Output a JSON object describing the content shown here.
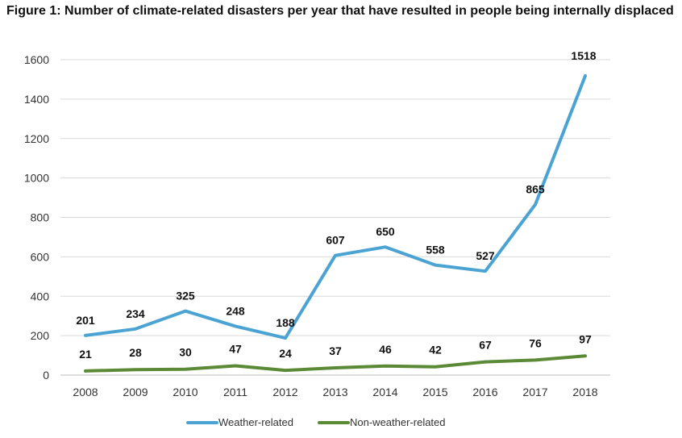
{
  "title": "Figure 1: Number of climate-related disasters per year that have resulted in people being internally displaced",
  "chart_data": {
    "type": "line",
    "title": "Figure 1: Number of climate-related disasters per year that have resulted in people being internally displaced",
    "xlabel": "",
    "ylabel": "",
    "categories": [
      "2008",
      "2009",
      "2010",
      "2011",
      "2012",
      "2013",
      "2014",
      "2015",
      "2016",
      "2017",
      "2018"
    ],
    "ylim": [
      0,
      1600
    ],
    "yticks": [
      0,
      200,
      400,
      600,
      800,
      1000,
      1200,
      1400,
      1600
    ],
    "grid": true,
    "legend_position": "bottom",
    "series": [
      {
        "name": "Weather-related",
        "color": "#4BA3D3",
        "values": [
          201,
          234,
          325,
          248,
          188,
          607,
          650,
          558,
          527,
          865,
          1518
        ]
      },
      {
        "name": "Non-weather-related",
        "color": "#5A8A35",
        "values": [
          21,
          28,
          30,
          47,
          24,
          37,
          46,
          42,
          67,
          76,
          97
        ]
      }
    ]
  }
}
